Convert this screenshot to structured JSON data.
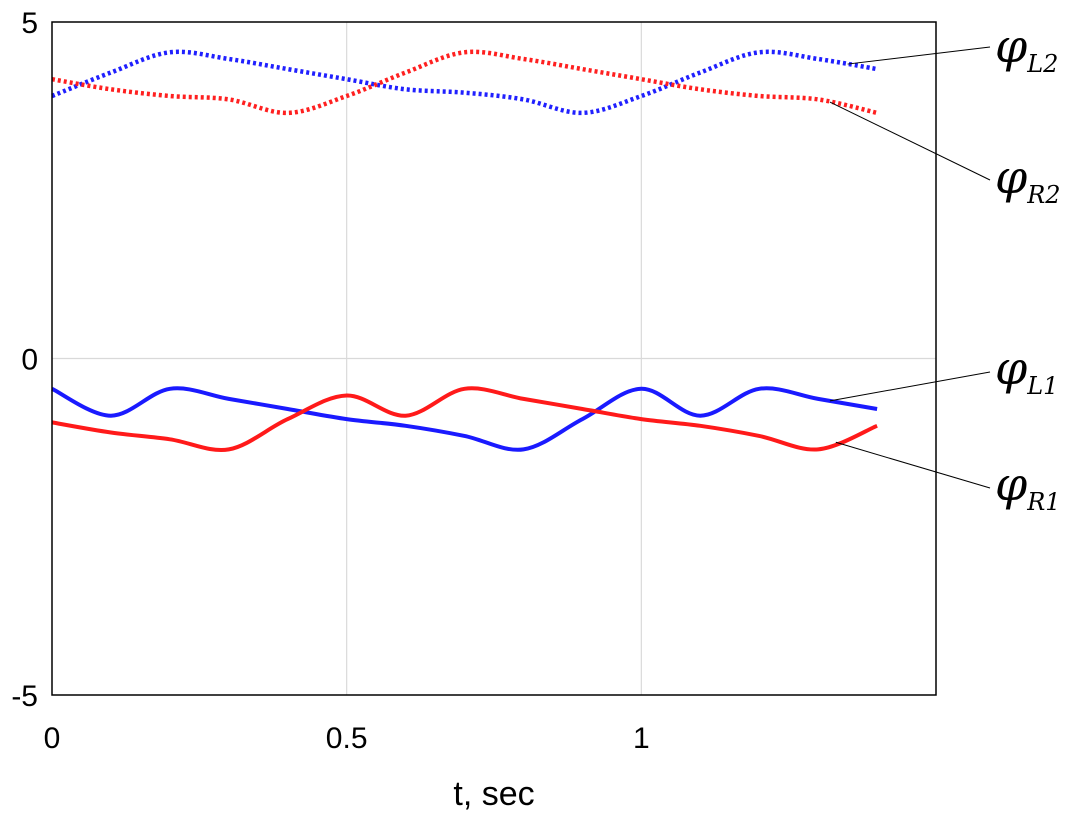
{
  "chart_data": {
    "type": "line",
    "xlabel": "t, sec",
    "ylabel": "",
    "xlim": [
      0,
      1.5
    ],
    "ylim": [
      -5,
      5
    ],
    "x_ticks": [
      "0",
      "0.5",
      "1"
    ],
    "y_ticks": [
      "5",
      "0",
      "-5"
    ],
    "grid": true,
    "series": [
      {
        "name": "φ_L2",
        "label_main": "φ",
        "label_sub": "L2",
        "color": "#2020ff",
        "style": "dotted",
        "x": [
          0,
          0.1,
          0.2,
          0.3,
          0.4,
          0.5,
          0.6,
          0.7,
          0.8,
          0.9,
          1.0,
          1.1,
          1.2,
          1.3,
          1.4
        ],
        "y": [
          3.9,
          4.25,
          4.55,
          4.45,
          4.3,
          4.15,
          4.0,
          3.95,
          3.85,
          3.65,
          3.9,
          4.25,
          4.55,
          4.45,
          4.3
        ]
      },
      {
        "name": "φ_R2",
        "label_main": "φ",
        "label_sub": "R2",
        "color": "#ff2020",
        "style": "dotted",
        "x": [
          0,
          0.1,
          0.2,
          0.3,
          0.4,
          0.5,
          0.6,
          0.7,
          0.8,
          0.9,
          1.0,
          1.1,
          1.2,
          1.3,
          1.4
        ],
        "y": [
          4.15,
          4.0,
          3.9,
          3.85,
          3.65,
          3.9,
          4.25,
          4.55,
          4.45,
          4.3,
          4.15,
          4.0,
          3.9,
          3.85,
          3.65
        ]
      },
      {
        "name": "φ_L1",
        "label_main": "φ",
        "label_sub": "L1",
        "color": "#1a1aff",
        "style": "solid",
        "x": [
          0,
          0.1,
          0.2,
          0.3,
          0.4,
          0.5,
          0.6,
          0.7,
          0.8,
          0.9,
          1.0,
          1.1,
          1.2,
          1.3,
          1.4
        ],
        "y": [
          -0.45,
          -0.85,
          -0.45,
          -0.6,
          -0.75,
          -0.9,
          -1.0,
          -1.15,
          -1.35,
          -0.9,
          -0.45,
          -0.85,
          -0.45,
          -0.6,
          -0.75
        ]
      },
      {
        "name": "φ_R1",
        "label_main": "φ",
        "label_sub": "R1",
        "color": "#ff1a1a",
        "style": "solid",
        "x": [
          0,
          0.1,
          0.2,
          0.3,
          0.4,
          0.5,
          0.6,
          0.7,
          0.8,
          0.9,
          1.0,
          1.1,
          1.2,
          1.3,
          1.4
        ],
        "y": [
          -0.95,
          -1.1,
          -1.2,
          -1.35,
          -0.9,
          -0.55,
          -0.85,
          -0.45,
          -0.6,
          -0.75,
          -0.9,
          -1.0,
          -1.15,
          -1.35,
          -1.0
        ]
      }
    ]
  }
}
